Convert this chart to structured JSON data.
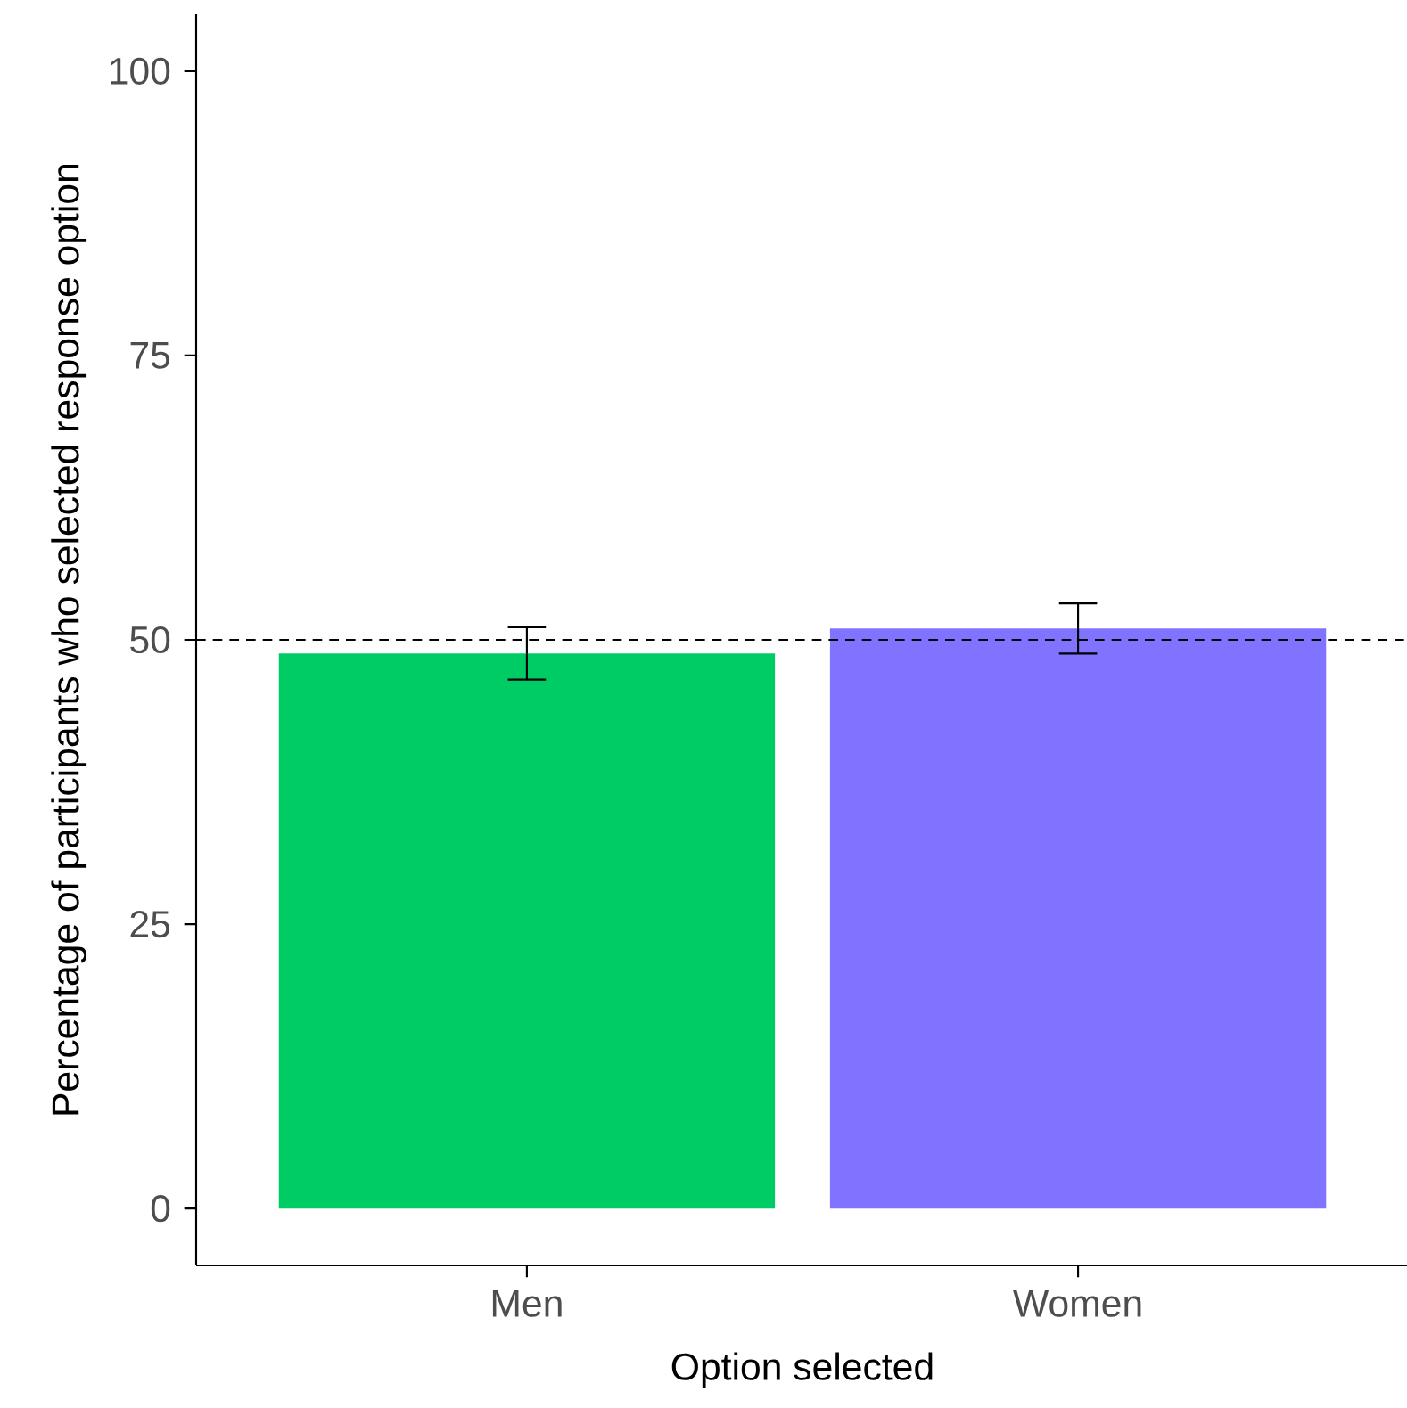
{
  "chart_data": {
    "type": "bar",
    "xlabel": "Option selected",
    "ylabel": "Percentage of participants who selected response option",
    "categories": [
      "Men",
      "Women"
    ],
    "values": [
      48.8,
      51.0
    ],
    "colors": [
      "#00cc66",
      "#8073ff"
    ],
    "errors": [
      [
        46.5,
        51.1
      ],
      [
        48.8,
        53.2
      ]
    ],
    "ylim": [
      -5,
      105
    ],
    "yticks": [
      0,
      25,
      50,
      75,
      100
    ],
    "ref_lines": [
      {
        "axis": "y",
        "value": 50,
        "line_style": "dashed"
      }
    ]
  }
}
